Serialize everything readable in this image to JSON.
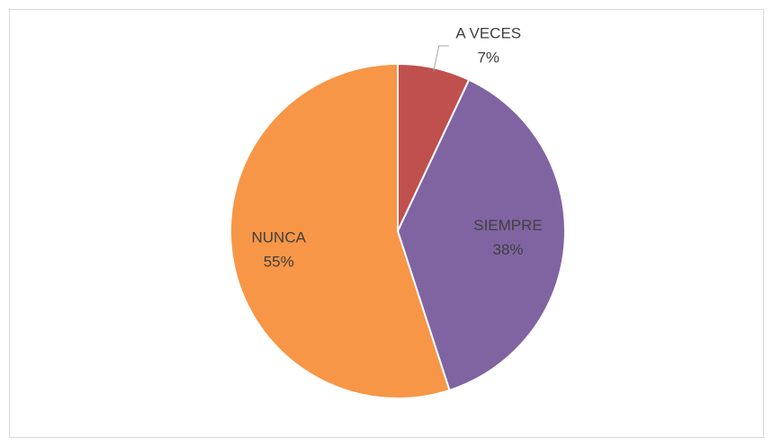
{
  "chart_data": {
    "type": "pie",
    "categories": [
      "A VECES",
      "SIEMPRE",
      "NUNCA"
    ],
    "values": [
      7,
      38,
      55
    ],
    "value_labels": [
      "7%",
      "38%",
      "55%"
    ],
    "colors": [
      "#c0504d",
      "#8064a2",
      "#f79646"
    ]
  }
}
